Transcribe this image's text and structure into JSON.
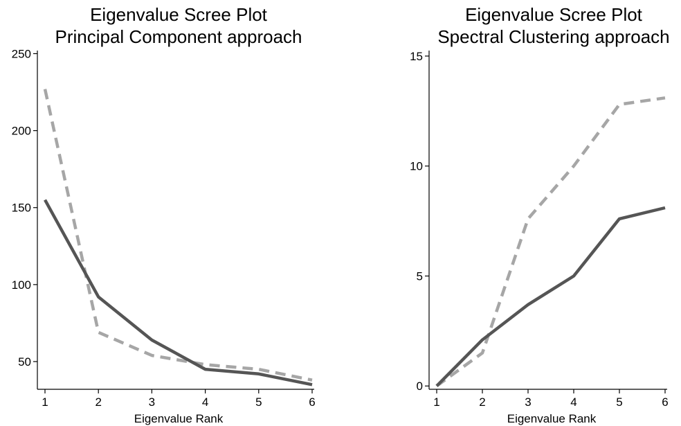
{
  "chart_data": [
    {
      "type": "line",
      "title": "Eigenvalue Scree Plot",
      "subtitle": "Principal Component approach",
      "xlabel": "Eigenvalue Rank",
      "ylabel": "",
      "x": [
        1,
        2,
        3,
        4,
        5,
        6
      ],
      "xticks": [
        "1",
        "2",
        "3",
        "4",
        "5",
        "6"
      ],
      "yticks": [
        "50",
        "100",
        "150",
        "200",
        "250"
      ],
      "ylim": [
        32,
        252
      ],
      "grid": false,
      "series": [
        {
          "values": [
            155,
            92,
            64,
            45,
            42,
            35
          ],
          "color": "#555555",
          "style": "solid"
        },
        {
          "values": [
            227,
            69,
            54,
            48,
            45,
            38
          ],
          "color": "#a6a6a6",
          "style": "dashed"
        }
      ]
    },
    {
      "type": "line",
      "title": "Eigenvalue Scree Plot",
      "subtitle": "Spectral Clustering approach",
      "xlabel": "Eigenvalue Rank",
      "ylabel": "",
      "x": [
        1,
        2,
        3,
        4,
        5,
        6
      ],
      "xticks": [
        "1",
        "2",
        "3",
        "4",
        "5",
        "6"
      ],
      "yticks": [
        "0",
        "5",
        "10",
        "15"
      ],
      "ylim": [
        -0.15,
        15.25
      ],
      "grid": false,
      "series": [
        {
          "values": [
            0,
            2.1,
            3.7,
            5.0,
            7.6,
            8.1
          ],
          "color": "#555555",
          "style": "solid"
        },
        {
          "values": [
            0,
            1.5,
            7.6,
            10.0,
            12.8,
            13.1
          ],
          "color": "#a6a6a6",
          "style": "dashed"
        }
      ]
    }
  ]
}
